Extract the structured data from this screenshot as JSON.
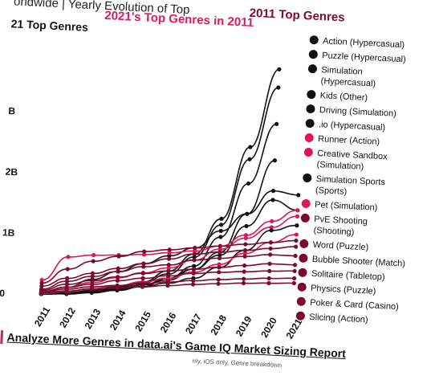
{
  "header": {
    "title": "orldwide | Yearly Evolution of Top",
    "legend_2021_label": "2021's Top Genres in 2011",
    "legend_2011_label": "2011 Top Genres",
    "legend_2021_short": "21 Top Genres"
  },
  "footer": {
    "link_text": "Analyze More Genres in data.ai's Game IQ Market Sizing Report",
    "note": "nly, iOS only, Genre breakdown"
  },
  "colors": {
    "black": "#111111",
    "pink": "#e0135f",
    "maroon": "#7a0a2e"
  },
  "chart_data": {
    "type": "line",
    "x": [
      "2011",
      "2012",
      "2013",
      "2014",
      "2015",
      "2016",
      "2017",
      "2018",
      "2019",
      "2020",
      "2021"
    ],
    "y_ticks": [
      "0",
      "1B",
      "2B",
      "B"
    ],
    "ylim": [
      0,
      4.2
    ],
    "grid": false,
    "legend_placement": "right",
    "series": [
      {
        "name": "Action (Hypercasual)",
        "color": "#111111",
        "values": [
          0.02,
          0.06,
          0.12,
          0.2,
          0.3,
          0.5,
          0.8,
          1.4,
          2.6,
          3.9,
          null
        ]
      },
      {
        "name": "Puzzle (Hypercasual)",
        "color": "#111111",
        "values": [
          0.02,
          0.05,
          0.1,
          0.18,
          0.28,
          0.45,
          0.75,
          1.3,
          2.4,
          3.6,
          null
        ]
      },
      {
        "name": "Simulation (Hypercasual)",
        "color": "#111111",
        "values": [
          0.02,
          0.04,
          0.08,
          0.14,
          0.22,
          0.38,
          0.6,
          1.1,
          2.0,
          3.0,
          null
        ]
      },
      {
        "name": "Kids (Other)",
        "color": "#111111",
        "values": [
          0.03,
          0.06,
          0.1,
          0.16,
          0.25,
          0.38,
          0.55,
          0.85,
          1.5,
          2.4,
          null
        ]
      },
      {
        "name": "Driving (Simulation)",
        "color": "#111111",
        "values": [
          0.05,
          0.15,
          0.3,
          0.45,
          0.6,
          0.75,
          0.9,
          1.2,
          1.5,
          1.9,
          1.85
        ]
      },
      {
        "name": ".io (Hypercasual)",
        "color": "#111111",
        "values": [
          0.02,
          0.05,
          0.1,
          0.15,
          0.25,
          0.35,
          0.55,
          0.8,
          1.3,
          1.75,
          1.6
        ]
      },
      {
        "name": "Runner (Action)",
        "color": "#e0135f",
        "values": [
          0.25,
          0.65,
          0.7,
          0.72,
          0.75,
          0.8,
          0.85,
          0.95,
          1.15,
          1.4,
          1.6
        ]
      },
      {
        "name": "Creative Sandbox (Simulation)",
        "color": "#e0135f",
        "values": [
          0.05,
          0.15,
          0.25,
          0.35,
          0.45,
          0.55,
          0.7,
          0.9,
          1.1,
          1.3,
          1.5
        ]
      },
      {
        "name": "Simulation Sports (Sports)",
        "color": "#111111",
        "values": [
          0.02,
          0.05,
          0.1,
          0.15,
          0.22,
          0.3,
          0.4,
          0.6,
          0.9,
          1.25,
          1.35
        ]
      },
      {
        "name": "Pet (Simulation)",
        "color": "#e0135f",
        "values": [
          0.03,
          0.08,
          0.15,
          0.22,
          0.3,
          0.38,
          0.5,
          0.65,
          0.85,
          1.05,
          1.2
        ]
      },
      {
        "name": "PvE Shooting (Shooting)",
        "color": "#7a0a2e",
        "values": [
          0.2,
          0.45,
          0.6,
          0.7,
          0.8,
          0.85,
          0.9,
          0.95,
          1.0,
          1.05,
          1.1
        ]
      },
      {
        "name": "Word (Puzzle)",
        "color": "#7a0a2e",
        "values": [
          0.15,
          0.3,
          0.4,
          0.5,
          0.6,
          0.7,
          0.8,
          0.85,
          0.9,
          0.95,
          1.0
        ]
      },
      {
        "name": "Bubble Shooter (Match)",
        "color": "#7a0a2e",
        "values": [
          0.1,
          0.25,
          0.35,
          0.45,
          0.55,
          0.6,
          0.7,
          0.75,
          0.8,
          0.85,
          0.85
        ]
      },
      {
        "name": "Solitaire (Tabletop)",
        "color": "#7a0a2e",
        "values": [
          0.08,
          0.2,
          0.28,
          0.36,
          0.44,
          0.5,
          0.55,
          0.6,
          0.65,
          0.7,
          0.7
        ]
      },
      {
        "name": "Physics (Puzzle)",
        "color": "#7a0a2e",
        "values": [
          0.06,
          0.15,
          0.22,
          0.3,
          0.36,
          0.42,
          0.48,
          0.52,
          0.55,
          0.58,
          0.6
        ]
      },
      {
        "name": "Poker & Card (Casino)",
        "color": "#7a0a2e",
        "values": [
          0.05,
          0.12,
          0.18,
          0.22,
          0.27,
          0.32,
          0.36,
          0.4,
          0.43,
          0.46,
          0.48
        ]
      },
      {
        "name": "Slicing (Action)",
        "color": "#7a0a2e",
        "values": [
          0.04,
          0.09,
          0.14,
          0.18,
          0.22,
          0.26,
          0.3,
          0.33,
          0.36,
          0.38,
          0.4
        ]
      }
    ]
  }
}
